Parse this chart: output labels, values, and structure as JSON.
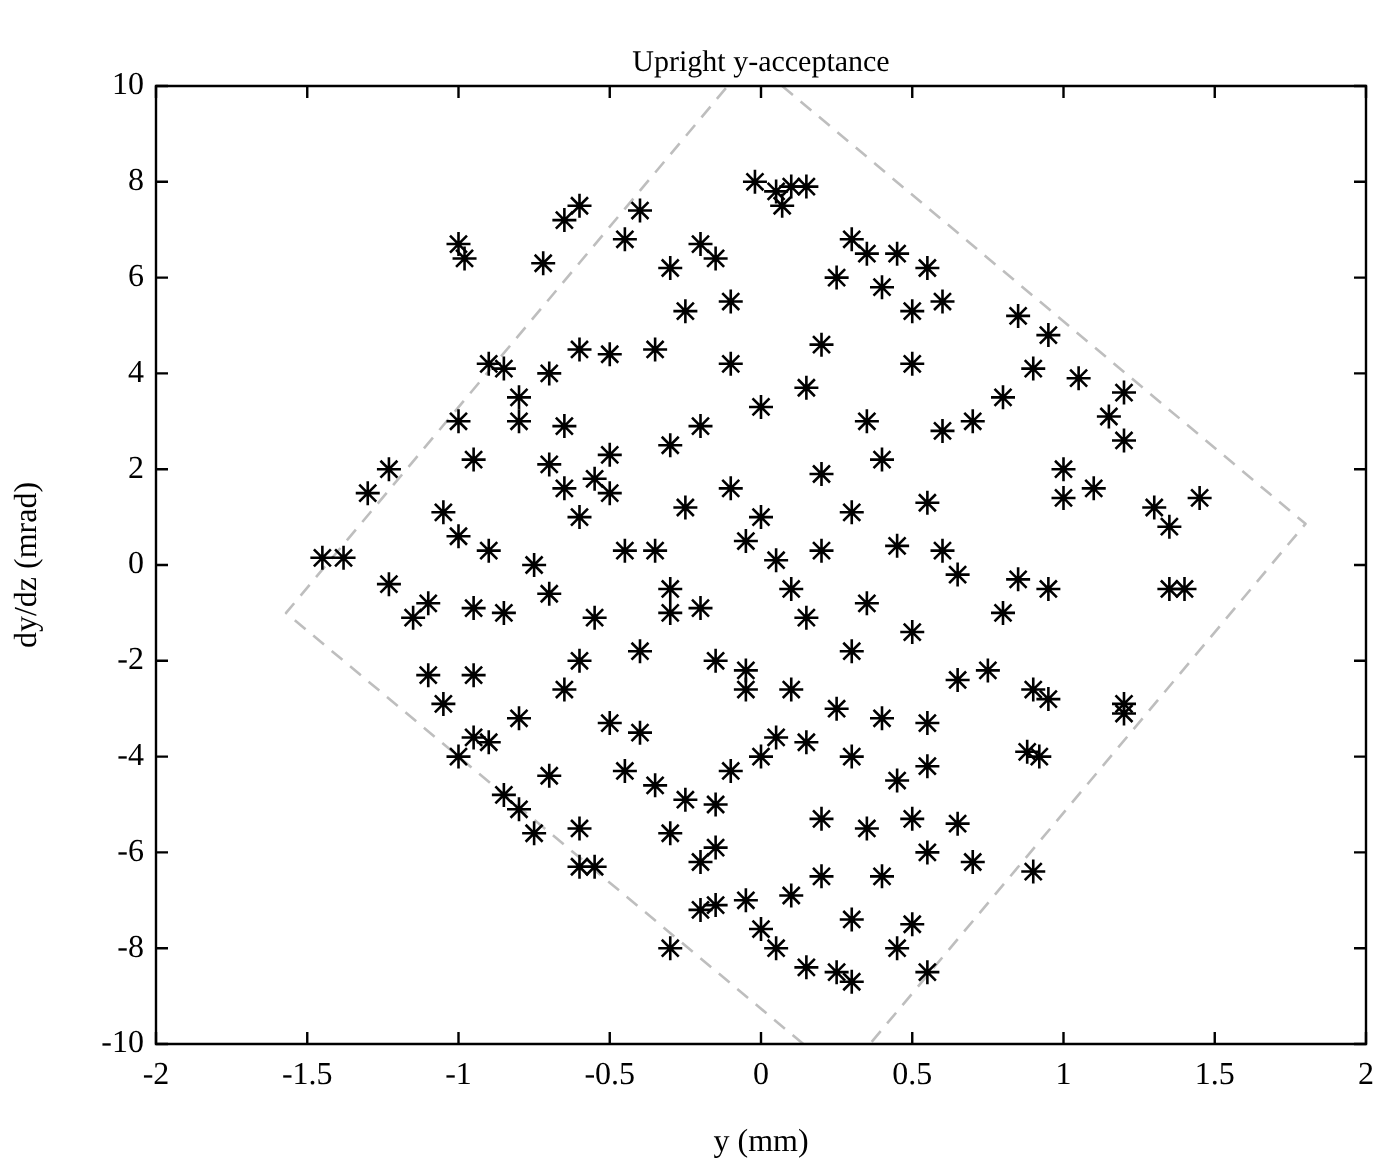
{
  "chart_data": {
    "type": "scatter",
    "title": "Upright y-acceptance",
    "xlabel": "y (mm)",
    "ylabel": "dy/dz (mrad)",
    "xlim": [
      -2,
      2
    ],
    "xticks": [
      -2,
      -1.5,
      -1,
      -0.5,
      0,
      0.5,
      1,
      1.5,
      2
    ],
    "ylim": [
      -10,
      10
    ],
    "yticks": [
      -10,
      -8,
      -6,
      -4,
      -2,
      0,
      2,
      4,
      6,
      8,
      10
    ],
    "marker": "cross",
    "legend": false,
    "series": [
      {
        "type": "scatter",
        "color": "#000000",
        "x": [
          -1.45,
          -1.38,
          -1.23,
          -1.3,
          -1.23,
          -1.0,
          -0.98,
          -0.72,
          -0.65,
          -0.6,
          -0.4,
          -0.45,
          -0.3,
          -0.2,
          -0.15,
          -0.9,
          -0.85,
          -0.8,
          -0.7,
          -0.6,
          -0.5,
          -0.35,
          -0.25,
          -0.1,
          -0.02,
          0.05,
          0.1,
          0.15,
          0.07,
          0.3,
          0.35,
          0.25,
          0.4,
          0.5,
          0.6,
          0.55,
          0.45,
          0.85,
          0.95,
          0.9,
          1.05,
          1.2,
          1.15,
          1.2,
          0.8,
          0.7,
          1.0,
          1.1,
          1.0,
          1.3,
          1.45,
          1.35,
          1.4,
          1.35,
          1.2,
          1.2,
          0.9,
          0.95,
          0.75,
          0.65,
          0.8,
          0.95,
          0.65,
          0.6,
          0.85,
          0.92,
          0.88,
          0.9,
          0.7,
          0.55,
          0.65,
          0.5,
          0.5,
          0.55,
          0.45,
          0.3,
          0.25,
          0.3,
          0.15,
          0.05,
          0.0,
          -0.05,
          0.1,
          0.2,
          0.4,
          0.35,
          0.2,
          0.45,
          0.3,
          0.15,
          0.05,
          0.25,
          0.4,
          0.55,
          0.55,
          -0.3,
          -0.2,
          -0.15,
          -0.2,
          -0.15,
          -0.6,
          -0.55,
          -0.6,
          -0.75,
          -0.8,
          -0.85,
          -0.7,
          -0.9,
          -1.0,
          -0.95,
          -1.05,
          -1.1,
          -0.95,
          -0.8,
          -0.65,
          -0.5,
          -0.4,
          -0.45,
          -0.35,
          -0.25,
          -0.15,
          -0.3,
          -0.1,
          0.0,
          -1.15,
          -1.1,
          -0.95,
          -0.85,
          -0.9,
          -0.75,
          -0.7,
          -0.6,
          -0.65,
          -0.7,
          -0.55,
          -0.5,
          -0.45,
          -0.35,
          -0.3,
          -0.2,
          -0.3,
          -0.15,
          -0.05,
          -0.05,
          -0.55,
          -0.6,
          -0.4,
          -1.0,
          -1.05,
          -0.95,
          -1.0,
          -0.8,
          -0.65,
          -0.5,
          -0.3,
          -0.2,
          -0.25,
          -0.1,
          -0.05,
          0.0,
          0.05,
          0.1,
          0.2,
          0.3,
          0.2,
          0.4,
          0.35,
          0.15,
          0.0,
          -0.1,
          0.2,
          0.5,
          0.6,
          0.55,
          0.45,
          0.35,
          0.5,
          0.3,
          0.15,
          0.1
        ],
        "values": [
          0.15,
          0.15,
          -0.4,
          1.5,
          2.0,
          6.7,
          6.4,
          6.3,
          7.2,
          7.5,
          7.4,
          6.8,
          6.2,
          6.7,
          6.4,
          4.2,
          4.1,
          3.5,
          4.0,
          4.5,
          4.4,
          4.5,
          5.3,
          5.5,
          8.0,
          7.8,
          7.9,
          7.9,
          7.5,
          6.8,
          6.5,
          6.0,
          5.8,
          5.3,
          5.5,
          6.2,
          6.5,
          5.2,
          4.8,
          4.1,
          3.9,
          3.6,
          3.1,
          2.6,
          3.5,
          3.0,
          2.0,
          1.6,
          1.4,
          1.2,
          1.4,
          0.8,
          -0.5,
          -0.5,
          -2.9,
          -3.1,
          -2.6,
          -2.8,
          -2.2,
          -2.4,
          -1.0,
          -0.5,
          -0.2,
          0.3,
          -0.3,
          -4.0,
          -3.9,
          -6.4,
          -6.2,
          -6.0,
          -5.4,
          -5.3,
          -7.5,
          -8.5,
          -8.0,
          -8.7,
          -8.5,
          -7.4,
          -8.4,
          -8.0,
          -7.6,
          -7.0,
          -6.9,
          -6.5,
          -6.5,
          -5.5,
          -5.3,
          -4.5,
          -4.0,
          -3.7,
          -3.6,
          -3.0,
          -3.2,
          -3.3,
          -4.2,
          -8.0,
          -7.2,
          -7.1,
          -6.2,
          -5.9,
          -6.3,
          -6.3,
          -5.5,
          -5.6,
          -5.1,
          -4.8,
          -4.4,
          -3.7,
          -4.0,
          -3.6,
          -2.9,
          -2.3,
          -2.3,
          -3.2,
          -2.6,
          -3.3,
          -3.5,
          -4.3,
          -4.6,
          -4.9,
          -5.0,
          -5.6,
          -4.3,
          -4.0,
          -1.1,
          -0.8,
          -0.9,
          -1.0,
          0.3,
          0.0,
          -0.6,
          1.0,
          1.6,
          2.1,
          1.8,
          1.5,
          0.3,
          0.3,
          -1.0,
          -0.9,
          -0.5,
          -2.0,
          -2.2,
          -2.6,
          -1.1,
          -2.0,
          -1.8,
          0.6,
          1.1,
          2.2,
          3.0,
          3.0,
          2.9,
          2.3,
          2.5,
          2.9,
          1.2,
          1.6,
          0.5,
          1.0,
          0.1,
          -0.5,
          0.3,
          1.1,
          1.9,
          2.2,
          3.0,
          3.7,
          3.3,
          4.2,
          4.6,
          4.2,
          2.8,
          1.3,
          0.4,
          -0.8,
          -1.4,
          -1.8,
          -1.1,
          -2.6
        ]
      },
      {
        "type": "line",
        "color": "#bebebe",
        "line_style": "dashed",
        "marker": "none",
        "x": [
          0.14,
          -1.57,
          -0.11,
          0,
          0.07,
          1.8,
          0.36
        ],
        "values": [
          -10,
          -1,
          10,
          null,
          10,
          0.86,
          -10
        ]
      }
    ]
  }
}
